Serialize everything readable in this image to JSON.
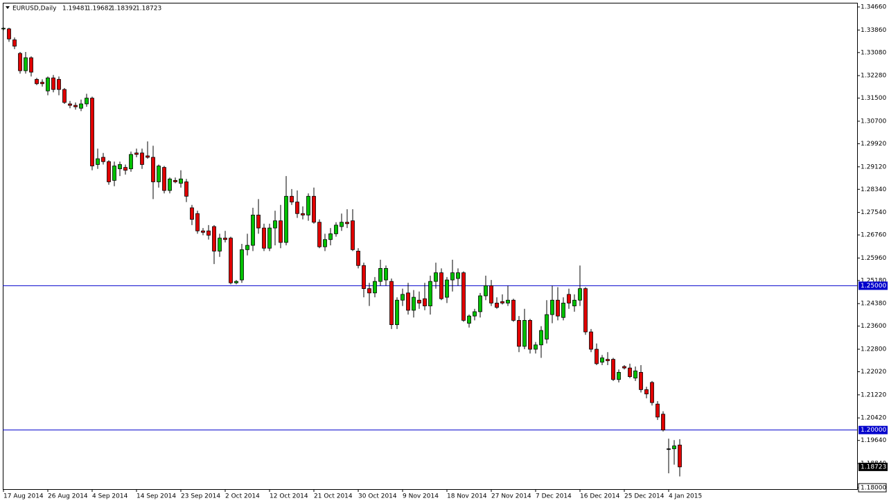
{
  "chart_data": {
    "type": "candlestick",
    "title": "EURUSD,Daily",
    "categories": [
      "17 Aug 2014",
      null,
      null,
      null,
      null,
      null,
      null,
      null,
      "26 Aug 2014",
      null,
      null,
      null,
      null,
      null,
      null,
      null,
      "4 Sep 2014",
      null,
      null,
      null,
      null,
      null,
      null,
      null,
      "14 Sep 2014",
      null,
      null,
      null,
      null,
      null,
      null,
      null,
      "23 Sep 2014",
      null,
      null,
      null,
      null,
      null,
      null,
      null,
      "2 Oct 2014",
      null,
      null,
      null,
      null,
      null,
      null,
      null,
      "12 Oct 2014",
      null,
      null,
      null,
      null,
      null,
      null,
      null,
      "21 Oct 2014",
      null,
      null,
      null,
      null,
      null,
      null,
      null,
      "30 Oct 2014",
      null,
      null,
      null,
      null,
      null,
      null,
      null,
      "9 Nov 2014",
      null,
      null,
      null,
      null,
      null,
      null,
      null,
      "18 Nov 2014",
      null,
      null,
      null,
      null,
      null,
      null,
      null,
      "27 Nov 2014",
      null,
      null,
      null,
      null,
      null,
      null,
      null,
      "7 Dec 2014",
      null,
      null,
      null,
      null,
      null,
      null,
      null,
      "16 Dec 2014",
      null,
      null,
      null,
      null,
      null,
      null,
      null,
      "25 Dec 2014",
      null,
      null,
      null,
      null,
      null,
      null,
      null,
      "4 Jan 2015",
      null,
      null
    ],
    "open": [
      1.339,
      1.339,
      1.3352,
      1.3305,
      1.3245,
      1.329,
      1.3215,
      1.3205,
      1.3175,
      1.322,
      1.3215,
      1.318,
      1.313,
      1.3125,
      1.3115,
      1.313,
      1.315,
      1.292,
      1.2945,
      1.293,
      1.2865,
      1.2905,
      1.291,
      1.2905,
      1.296,
      1.296,
      1.295,
      1.2945,
      1.286,
      1.291,
      1.283,
      1.2865,
      1.2855,
      1.286,
      1.277,
      1.275,
      1.269,
      1.269,
      1.2705,
      1.262,
      1.2665,
      1.2665,
      1.251,
      1.252,
      1.2625,
      1.264,
      1.2745,
      1.27,
      1.263,
      1.27,
      1.2725,
      1.265,
      1.281,
      1.279,
      1.275,
      1.2745,
      1.281,
      1.272,
      1.2635,
      1.266,
      1.268,
      1.2705,
      1.272,
      1.2725,
      1.262,
      1.257,
      1.249,
      1.2475,
      1.2515,
      1.252,
      1.2515,
      1.2365,
      1.245,
      1.2475,
      1.2415,
      1.245,
      1.2455,
      1.243,
      1.2515,
      1.2545,
      1.246,
      1.252,
      1.2525,
      1.2545,
      1.237,
      1.2395,
      1.241,
      1.2465,
      1.25,
      1.244,
      1.2445,
      1.244,
      1.245,
      1.238,
      1.229,
      1.238,
      1.228,
      1.2295,
      1.2315,
      1.24,
      1.245,
      1.239,
      1.247,
      1.243,
      1.245,
      1.249,
      1.234,
      1.228,
      1.2235,
      1.2245,
      1.2245,
      1.2175,
      1.222,
      1.2215,
      1.218,
      1.22,
      1.214,
      1.2165,
      1.209,
      1.2055,
      1.1935,
      1.1935,
      1.19481
    ],
    "high": [
      1.3395,
      1.3394,
      1.336,
      1.331,
      1.331,
      1.3295,
      1.322,
      1.3215,
      1.3225,
      1.323,
      1.3225,
      1.3185,
      1.314,
      1.3135,
      1.3145,
      1.3165,
      1.3155,
      1.2975,
      1.296,
      1.2935,
      1.293,
      1.293,
      1.292,
      1.2965,
      1.2975,
      1.2975,
      1.3,
      1.2985,
      1.292,
      1.2915,
      1.2875,
      1.2875,
      1.29,
      1.287,
      1.278,
      1.276,
      1.27,
      1.271,
      1.271,
      1.268,
      1.269,
      1.267,
      1.252,
      1.2645,
      1.268,
      1.277,
      1.28,
      1.2715,
      1.2715,
      1.276,
      1.278,
      1.288,
      1.2835,
      1.283,
      1.2775,
      1.282,
      1.284,
      1.273,
      1.268,
      1.27,
      1.272,
      1.275,
      1.2765,
      1.2765,
      1.263,
      1.258,
      1.251,
      1.253,
      1.259,
      1.257,
      1.2525,
      1.246,
      1.249,
      1.251,
      1.2485,
      1.248,
      1.251,
      1.2535,
      1.258,
      1.256,
      1.253,
      1.259,
      1.256,
      1.255,
      1.24,
      1.242,
      1.2475,
      1.2535,
      1.252,
      1.246,
      1.247,
      1.25,
      1.2455,
      1.2395,
      1.242,
      1.2385,
      1.2305,
      1.236,
      1.245,
      1.25,
      1.2495,
      1.246,
      1.249,
      1.247,
      1.257,
      1.2495,
      1.235,
      1.23,
      1.226,
      1.227,
      1.225,
      1.221,
      1.2225,
      1.223,
      1.222,
      1.2225,
      1.215,
      1.217,
      1.21,
      1.2065,
      1.197,
      1.1965,
      1.19682
    ],
    "low": [
      1.3385,
      1.3345,
      1.332,
      1.3235,
      1.3235,
      1.3225,
      1.3195,
      1.319,
      1.316,
      1.317,
      1.316,
      1.313,
      1.3115,
      1.311,
      1.3105,
      1.312,
      1.29,
      1.2905,
      1.292,
      1.285,
      1.2845,
      1.288,
      1.2885,
      1.2895,
      1.2945,
      1.2905,
      1.294,
      1.28,
      1.284,
      1.282,
      1.282,
      1.2855,
      1.284,
      1.279,
      1.271,
      1.268,
      1.2675,
      1.266,
      1.2575,
      1.26,
      1.265,
      1.2505,
      1.2505,
      1.251,
      1.2605,
      1.262,
      1.268,
      1.262,
      1.262,
      1.264,
      1.263,
      1.264,
      1.278,
      1.2735,
      1.273,
      1.2725,
      1.2715,
      1.263,
      1.262,
      1.264,
      1.267,
      1.269,
      1.27,
      1.262,
      1.256,
      1.246,
      1.243,
      1.246,
      1.25,
      1.25,
      1.235,
      1.235,
      1.243,
      1.24,
      1.239,
      1.242,
      1.2415,
      1.24,
      1.249,
      1.245,
      1.244,
      1.248,
      1.25,
      1.2375,
      1.2355,
      1.238,
      1.239,
      1.245,
      1.243,
      1.242,
      1.2435,
      1.243,
      1.2375,
      1.227,
      1.228,
      1.2265,
      1.2265,
      1.225,
      1.23,
      1.237,
      1.238,
      1.238,
      1.242,
      1.241,
      1.243,
      1.233,
      1.227,
      1.2225,
      1.2225,
      1.2225,
      1.217,
      1.2165,
      1.221,
      1.218,
      1.217,
      1.213,
      1.211,
      1.2085,
      1.2035,
      1.1995,
      1.185,
      1.188,
      1.18392
    ],
    "close": [
      1.3392,
      1.3355,
      1.333,
      1.3245,
      1.329,
      1.324,
      1.32,
      1.32,
      1.322,
      1.318,
      1.318,
      1.3135,
      1.3125,
      1.312,
      1.313,
      1.315,
      1.2915,
      1.294,
      1.293,
      1.286,
      1.2915,
      1.292,
      1.29,
      1.2955,
      1.2955,
      1.292,
      1.2945,
      1.286,
      1.2915,
      1.283,
      1.287,
      1.286,
      1.287,
      1.281,
      1.273,
      1.269,
      1.2685,
      1.2675,
      1.262,
      1.2665,
      1.266,
      1.251,
      1.2515,
      1.2625,
      1.264,
      1.2745,
      1.27,
      1.263,
      1.27,
      1.2725,
      1.265,
      1.281,
      1.279,
      1.275,
      1.2745,
      1.281,
      1.272,
      1.2635,
      1.266,
      1.268,
      1.271,
      1.272,
      1.2715,
      1.2625,
      1.257,
      1.249,
      1.2475,
      1.2515,
      1.256,
      1.256,
      1.2365,
      1.245,
      1.247,
      1.2415,
      1.246,
      1.244,
      1.243,
      1.2515,
      1.2545,
      1.2455,
      1.252,
      1.2545,
      1.2545,
      1.238,
      1.2395,
      1.241,
      1.2465,
      1.25,
      1.244,
      1.2425,
      1.244,
      1.245,
      1.238,
      1.229,
      1.238,
      1.228,
      1.2295,
      1.2345,
      1.24,
      1.245,
      1.2395,
      1.244,
      1.244,
      1.245,
      1.249,
      1.234,
      1.228,
      1.223,
      1.225,
      1.224,
      1.2175,
      1.22,
      1.2215,
      1.2185,
      1.2205,
      1.214,
      1.2125,
      1.2095,
      1.2045,
      1.2,
      1.1935,
      1.1945,
      1.18723
    ],
    "up_color": "#00c000",
    "down_color": "#e00000",
    "ylim": [
      1.18,
      1.3466
    ],
    "yticks": [
      {
        "value": 1.3466,
        "label": "1.34660"
      },
      {
        "value": 1.3386,
        "label": "1.33860"
      },
      {
        "value": 1.3308,
        "label": "1.33080"
      },
      {
        "value": 1.3228,
        "label": "1.32280"
      },
      {
        "value": 1.315,
        "label": "1.31500"
      },
      {
        "value": 1.307,
        "label": "1.30700"
      },
      {
        "value": 1.2992,
        "label": "1.29920"
      },
      {
        "value": 1.2912,
        "label": "1.29120"
      },
      {
        "value": 1.2834,
        "label": "1.28340"
      },
      {
        "value": 1.2754,
        "label": "1.27540"
      },
      {
        "value": 1.2676,
        "label": "1.26760"
      },
      {
        "value": 1.2596,
        "label": "1.25960"
      },
      {
        "value": 1.2518,
        "label": "1.25180"
      },
      {
        "value": 1.2438,
        "label": "1.24380"
      },
      {
        "value": 1.236,
        "label": "1.23600"
      },
      {
        "value": 1.228,
        "label": "1.22800"
      },
      {
        "value": 1.2202,
        "label": "1.22020"
      },
      {
        "value": 1.2122,
        "label": "1.21220"
      },
      {
        "value": 1.2042,
        "label": "1.20420"
      },
      {
        "value": 1.1964,
        "label": "1.19640"
      },
      {
        "value": 1.1884,
        "label": "1.18840"
      },
      {
        "value": 1.18,
        "label": "1.18000"
      }
    ],
    "hlines": [
      {
        "value": 1.25,
        "label": "1.25000"
      },
      {
        "value": 1.2,
        "label": "1.20000"
      }
    ],
    "hline_color": "#0000cc"
  }
}
